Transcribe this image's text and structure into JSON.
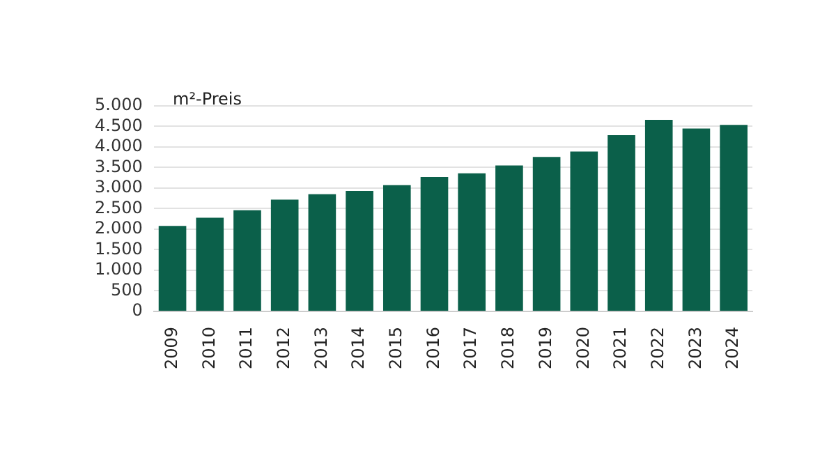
{
  "chart_data": {
    "type": "bar",
    "ylabel": "m²-Preis",
    "categories": [
      "2009",
      "2010",
      "2011",
      "2012",
      "2013",
      "2014",
      "2015",
      "2016",
      "2017",
      "2018",
      "2019",
      "2020",
      "2021",
      "2022",
      "2023",
      "2024"
    ],
    "values": [
      2080,
      2280,
      2460,
      2720,
      2850,
      2930,
      3070,
      3270,
      3360,
      3550,
      3760,
      3890,
      4290,
      4660,
      4450,
      4540
    ],
    "color": "#0b604a",
    "ylim": [
      0,
      5000
    ],
    "yticks": [
      {
        "value": 0,
        "label": "0"
      },
      {
        "value": 500,
        "label": "500"
      },
      {
        "value": 1000,
        "label": "1.000"
      },
      {
        "value": 1500,
        "label": "1.500"
      },
      {
        "value": 2000,
        "label": "2.000"
      },
      {
        "value": 2500,
        "label": "2.500"
      },
      {
        "value": 3000,
        "label": "3.000"
      },
      {
        "value": 3500,
        "label": "3.500"
      },
      {
        "value": 4000,
        "label": "4.000"
      },
      {
        "value": 4500,
        "label": "4.500"
      },
      {
        "value": 5000,
        "label": "5.000"
      }
    ],
    "grid": "y",
    "legend": false
  }
}
